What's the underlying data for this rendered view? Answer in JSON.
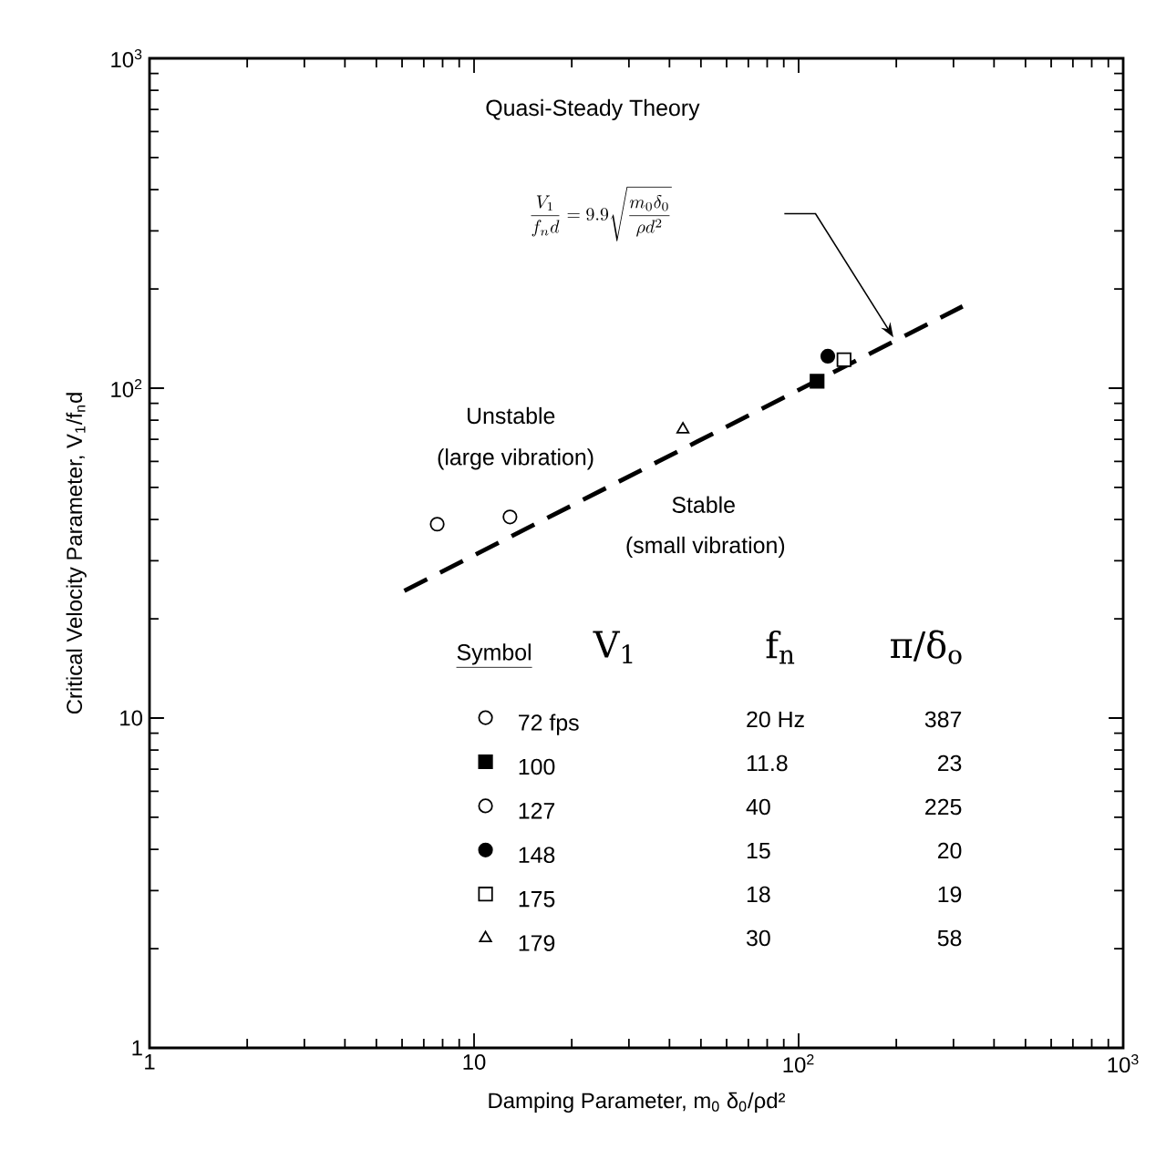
{
  "chart_data": {
    "type": "scatter",
    "log": "xy",
    "xlabel": "Damping Parameter, m$_{0}$ δ$_{0}$/ρd²",
    "ylabel": "Critical Velocity Parameter, V$_{1}$/f$_{n}$d",
    "xlim": [
      1,
      1000
    ],
    "ylim": [
      1,
      1000
    ],
    "xticks": [
      1,
      {
        "value": 2,
        "label": null
      },
      {
        "value": 3,
        "label": null
      },
      {
        "value": 4,
        "label": null
      },
      {
        "value": 5,
        "label": null
      },
      {
        "value": 6,
        "label": null
      },
      {
        "value": 7,
        "label": null
      },
      {
        "value": 8,
        "label": null
      },
      {
        "value": 9,
        "label": null
      },
      10,
      {
        "value": 20,
        "label": null
      },
      {
        "value": 30,
        "label": null
      },
      {
        "value": 40,
        "label": null
      },
      {
        "value": 50,
        "label": null
      },
      {
        "value": 60,
        "label": null
      },
      {
        "value": 70,
        "label": null
      },
      {
        "value": 80,
        "label": null
      },
      {
        "value": 90,
        "label": null
      },
      {
        "value": 100,
        "label": "10$^{2}$"
      },
      {
        "value": 200,
        "label": null
      },
      {
        "value": 300,
        "label": null
      },
      {
        "value": 400,
        "label": null
      },
      {
        "value": 500,
        "label": null
      },
      {
        "value": 600,
        "label": null
      },
      {
        "value": 700,
        "label": null
      },
      {
        "value": 800,
        "label": null
      },
      {
        "value": 900,
        "label": null
      },
      {
        "value": 1000,
        "label": "10$^{3}$"
      }
    ],
    "yticks": [
      1,
      {
        "value": 2,
        "label": null
      },
      {
        "value": 3,
        "label": null
      },
      {
        "value": 4,
        "label": null
      },
      {
        "value": 5,
        "label": null
      },
      {
        "value": 6,
        "label": null
      },
      {
        "value": 7,
        "label": null
      },
      {
        "value": 8,
        "label": null
      },
      {
        "value": 9,
        "label": null
      },
      10,
      {
        "value": 20,
        "label": null
      },
      {
        "value": 30,
        "label": null
      },
      {
        "value": 40,
        "label": null
      },
      {
        "value": 50,
        "label": null
      },
      {
        "value": 60,
        "label": null
      },
      {
        "value": 70,
        "label": null
      },
      {
        "value": 80,
        "label": null
      },
      {
        "value": 90,
        "label": null
      },
      {
        "value": 100,
        "label": "10$^{2}$"
      },
      {
        "value": 200,
        "label": null
      },
      {
        "value": 300,
        "label": null
      },
      {
        "value": 400,
        "label": null
      },
      {
        "value": 500,
        "label": null
      },
      {
        "value": 600,
        "label": null
      },
      {
        "value": 700,
        "label": null
      },
      {
        "value": 800,
        "label": null
      },
      {
        "value": 900,
        "label": null
      },
      {
        "value": 1000,
        "label": "10$^{3}$"
      }
    ],
    "legend": "bottom",
    "legend_title": "Symbol",
    "series": [
      {
        "name": "72 fps",
        "color": "#ffffff",
        "marker": "circle",
        "x": [
          7.7
        ],
        "values": [
          38.7
        ]
      },
      {
        "name": "100",
        "color": "#000000",
        "marker": "square",
        "x": [
          114
        ],
        "values": [
          105
        ]
      },
      {
        "name": "127",
        "color": "#ffffff",
        "marker": "circle",
        "x": [
          12.9
        ],
        "values": [
          40.7
        ]
      },
      {
        "name": "148",
        "color": "#000000",
        "marker": "circle",
        "x": [
          123
        ],
        "values": [
          125
        ]
      },
      {
        "name": "175",
        "color": "#ffffff",
        "marker": "square",
        "x": [
          138
        ],
        "values": [
          122
        ]
      },
      {
        "name": "179",
        "color": "#ffffff",
        "marker": "triangle",
        "x": [
          44
        ],
        "values": [
          75
        ]
      },
      {
        "type": "line",
        "color": "#000000",
        "line_style": "dashed",
        "marker": "none",
        "x": [
          6.1,
          320
        ],
        "values": [
          24.3,
          177
        ]
      }
    ],
    "annotations": [
      "Quasi-Steady Theory",
      "\\frac{V_{1}}{f_{n}d}=9.9\\sqrt{\\frac{m_{0}\\delta_{0}}{\\rho d^{2}}}",
      "Unstable",
      "(large vibration)",
      "Stable",
      "(small vibration)",
      "V$_{1}$",
      "f$_{n}$",
      "π/δ$_{o}$",
      "20 Hz",
      "11.8",
      "40",
      "15",
      "18",
      "30",
      "387",
      "23",
      "225",
      "20",
      "19",
      "58"
    ]
  }
}
